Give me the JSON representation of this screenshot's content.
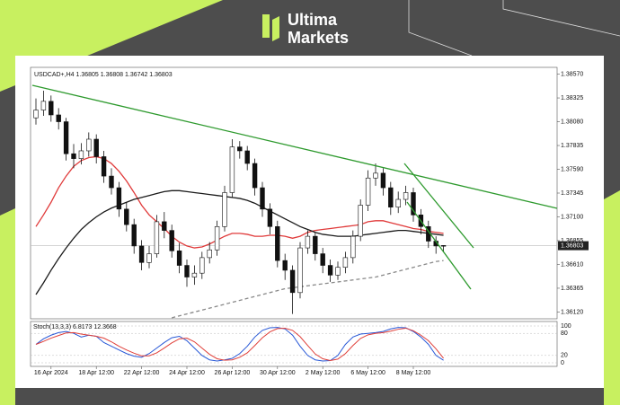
{
  "brand": {
    "line1": "Ultima",
    "line2": "Markets"
  },
  "chart_data": [
    {
      "type": "candlestick",
      "symbol": "USDCAD+,H4",
      "ohlc": [
        [
          1.3812,
          1.3832,
          1.3805,
          1.382
        ],
        [
          1.382,
          1.384,
          1.3814,
          1.3829
        ],
        [
          1.3829,
          1.3835,
          1.3808,
          1.3815
        ],
        [
          1.3815,
          1.3822,
          1.38,
          1.3808
        ],
        [
          1.3808,
          1.3812,
          1.3768,
          1.3775
        ],
        [
          1.3775,
          1.3785,
          1.376,
          1.377
        ],
        [
          1.377,
          1.3786,
          1.3764,
          1.3778
        ],
        [
          1.3778,
          1.3797,
          1.3772,
          1.379
        ],
        [
          1.379,
          1.3795,
          1.3765,
          1.3772
        ],
        [
          1.3772,
          1.3778,
          1.3745,
          1.3752
        ],
        [
          1.3752,
          1.376,
          1.3733,
          1.374
        ],
        [
          1.374,
          1.3746,
          1.371,
          1.3718
        ],
        [
          1.3718,
          1.3725,
          1.3695,
          1.3702
        ],
        [
          1.3702,
          1.3708,
          1.3672,
          1.368
        ],
        [
          1.368,
          1.3686,
          1.3655,
          1.3663
        ],
        [
          1.3663,
          1.368,
          1.3657,
          1.3672
        ],
        [
          1.3672,
          1.3712,
          1.3668,
          1.3705
        ],
        [
          1.3705,
          1.3715,
          1.3688,
          1.3696
        ],
        [
          1.3696,
          1.3702,
          1.3668,
          1.3675
        ],
        [
          1.3675,
          1.3683,
          1.3652,
          1.366
        ],
        [
          1.366,
          1.3666,
          1.3638,
          1.3648
        ],
        [
          1.3648,
          1.366,
          1.364,
          1.3652
        ],
        [
          1.3652,
          1.3674,
          1.3646,
          1.3668
        ],
        [
          1.3668,
          1.3684,
          1.3662,
          1.3676
        ],
        [
          1.3676,
          1.3706,
          1.367,
          1.37
        ],
        [
          1.37,
          1.3742,
          1.3695,
          1.3735
        ],
        [
          1.3735,
          1.379,
          1.373,
          1.3782
        ],
        [
          1.3782,
          1.3788,
          1.377,
          1.3778
        ],
        [
          1.3778,
          1.3783,
          1.3758,
          1.3765
        ],
        [
          1.3765,
          1.377,
          1.3732,
          1.374
        ],
        [
          1.374,
          1.3746,
          1.371,
          1.3718
        ],
        [
          1.3718,
          1.3724,
          1.3692,
          1.37
        ],
        [
          1.37,
          1.3706,
          1.3658,
          1.3665
        ],
        [
          1.3665,
          1.3672,
          1.3645,
          1.3655
        ],
        [
          1.3655,
          1.366,
          1.361,
          1.3632
        ],
        [
          1.3632,
          1.3684,
          1.3626,
          1.3678
        ],
        [
          1.3678,
          1.3696,
          1.3672,
          1.369
        ],
        [
          1.369,
          1.3694,
          1.3665,
          1.3672
        ],
        [
          1.3672,
          1.3678,
          1.3652,
          1.366
        ],
        [
          1.366,
          1.3666,
          1.3643,
          1.365
        ],
        [
          1.365,
          1.3664,
          1.3645,
          1.3658
        ],
        [
          1.3658,
          1.3674,
          1.3652,
          1.3668
        ],
        [
          1.3668,
          1.3696,
          1.3662,
          1.369
        ],
        [
          1.369,
          1.3728,
          1.3685,
          1.3722
        ],
        [
          1.3722,
          1.3758,
          1.3716,
          1.375
        ],
        [
          1.375,
          1.3765,
          1.3742,
          1.3755
        ],
        [
          1.3755,
          1.376,
          1.3732,
          1.374
        ],
        [
          1.374,
          1.3746,
          1.3712,
          1.372
        ],
        [
          1.372,
          1.3736,
          1.3714,
          1.3728
        ],
        [
          1.3728,
          1.3742,
          1.3722,
          1.3735
        ],
        [
          1.3735,
          1.374,
          1.3705,
          1.3712
        ],
        [
          1.3712,
          1.3718,
          1.3692,
          1.37
        ],
        [
          1.37,
          1.3706,
          1.3678,
          1.3685
        ],
        [
          1.3685,
          1.369,
          1.3672,
          1.368
        ],
        [
          1.36805,
          1.36808,
          1.36742,
          1.36803
        ]
      ],
      "categories": [
        null,
        null,
        "16 Apr 2024",
        null,
        null,
        null,
        null,
        null,
        "18 Apr 12:00",
        null,
        null,
        null,
        null,
        null,
        "22 Apr 12:00",
        null,
        null,
        null,
        null,
        null,
        "24 Apr 12:00",
        null,
        null,
        null,
        null,
        null,
        "26 Apr 12:00",
        null,
        null,
        null,
        null,
        null,
        "30 Apr 12:00",
        null,
        null,
        null,
        null,
        null,
        "2 May 12:00",
        null,
        null,
        null,
        null,
        null,
        "6 May 12:00",
        null,
        null,
        null,
        null,
        null,
        "8 May 12:00",
        null,
        null,
        null,
        null
      ],
      "ylim": [
        1.3605,
        1.3864
      ],
      "yticks": [
        {
          "value": 1.3857,
          "label": "1.38570"
        },
        {
          "value": 1.38325,
          "label": "1.38325"
        },
        {
          "value": 1.3808,
          "label": "1.38080"
        },
        {
          "value": 1.37835,
          "label": "1.37835"
        },
        {
          "value": 1.3759,
          "label": "1.37590"
        },
        {
          "value": 1.37345,
          "label": "1.37345"
        },
        {
          "value": 1.371,
          "label": "1.37100"
        },
        {
          "value": 1.36855,
          "label": "1.36855"
        },
        {
          "value": 1.3661,
          "label": "1.36610"
        },
        {
          "value": 1.36365,
          "label": "1.36365"
        },
        {
          "value": 1.3612,
          "label": "1.36120"
        }
      ],
      "series": [
        {
          "color": "#e03a3a",
          "style": "solid",
          "values": [
            1.37,
            1.3712,
            1.3725,
            1.374,
            1.3752,
            1.3762,
            1.3768,
            1.3771,
            1.3772,
            1.377,
            1.3765,
            1.3757,
            1.3747,
            1.3735,
            1.3722,
            1.3712,
            1.3705,
            1.3698,
            1.369,
            1.3684,
            1.368,
            1.3678,
            1.3679,
            1.3682,
            1.3686,
            1.369,
            1.3693,
            1.3693,
            1.3692,
            1.369,
            1.369,
            1.3691,
            1.3691,
            1.369,
            1.3688,
            1.369,
            1.3694,
            1.3696,
            1.3697,
            1.3698,
            1.3699,
            1.37,
            1.3701,
            1.3702,
            1.3705,
            1.3706,
            1.3706,
            1.3704,
            1.3702,
            1.37,
            1.3698,
            1.3697,
            1.3695,
            1.3694,
            1.3693
          ]
        },
        {
          "color": "#1a1a1a",
          "style": "solid",
          "values": [
            1.363,
            1.3642,
            1.3655,
            1.3667,
            1.3678,
            1.3688,
            1.3697,
            1.3704,
            1.371,
            1.3715,
            1.3719,
            1.3722,
            1.3725,
            1.3728,
            1.373,
            1.3732,
            1.3734,
            1.3736,
            1.3737,
            1.3737,
            1.3736,
            1.3735,
            1.3734,
            1.3733,
            1.3732,
            1.3731,
            1.373,
            1.3729,
            1.3727,
            1.3724,
            1.372,
            1.3716,
            1.3712,
            1.3708,
            1.3704,
            1.37,
            1.3697,
            1.3694,
            1.3692,
            1.3691,
            1.369,
            1.369,
            1.369,
            1.3691,
            1.3692,
            1.3693,
            1.3694,
            1.3695,
            1.3696,
            1.3696,
            1.3695,
            1.3694,
            1.3693,
            1.3692,
            1.3691
          ]
        },
        {
          "color": "#888888",
          "style": "dashed",
          "values": [
            null,
            null,
            null,
            null,
            null,
            null,
            null,
            null,
            null,
            null,
            null,
            null,
            null,
            null,
            null,
            null,
            null,
            null,
            1.3606,
            1.3608,
            1.361,
            1.3612,
            1.3614,
            1.3616,
            1.3618,
            1.362,
            1.3622,
            1.3624,
            1.3626,
            1.3628,
            1.363,
            1.3632,
            1.3634,
            1.3636,
            1.3637,
            1.3638,
            1.3639,
            1.364,
            1.3641,
            1.3642,
            1.3643,
            1.3644,
            1.3645,
            1.3646,
            1.3647,
            1.3648,
            1.365,
            1.3652,
            1.3654,
            1.3656,
            1.3658,
            1.366,
            1.3662,
            1.3664,
            1.3665
          ]
        }
      ]
    },
    {
      "type": "line",
      "title": "Stoch(13,3,3)",
      "ylim": [
        0,
        100
      ],
      "yticks": [
        100,
        80,
        20,
        0
      ],
      "series": [
        {
          "color": "#2757d6",
          "values": [
            50,
            65,
            75,
            82,
            85,
            80,
            70,
            75,
            72,
            55,
            45,
            35,
            25,
            18,
            15,
            25,
            40,
            55,
            68,
            72,
            60,
            40,
            20,
            8,
            5,
            8,
            12,
            25,
            45,
            70,
            88,
            95,
            96,
            92,
            75,
            45,
            20,
            8,
            5,
            6,
            20,
            50,
            70,
            78,
            80,
            82,
            85,
            92,
            96,
            95,
            85,
            70,
            50,
            20,
            6.8173
          ]
        },
        {
          "color": "#e0403a",
          "values": [
            50,
            58,
            67,
            74,
            81,
            82,
            78,
            75,
            72,
            67,
            57,
            45,
            35,
            26,
            19,
            19,
            27,
            40,
            54,
            65,
            67,
            57,
            40,
            23,
            11,
            7,
            8,
            15,
            27,
            47,
            68,
            84,
            93,
            94,
            88,
            71,
            47,
            24,
            11,
            6,
            10,
            25,
            47,
            66,
            76,
            80,
            82,
            86,
            91,
            94,
            87,
            75,
            60,
            38,
            12.3668
          ]
        }
      ]
    }
  ]
}
